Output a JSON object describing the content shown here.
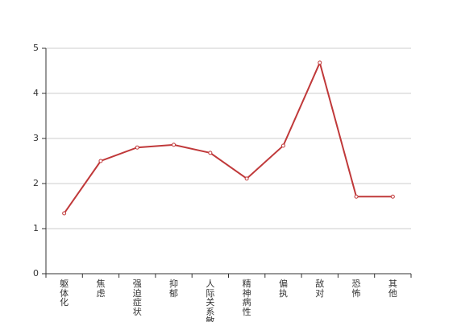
{
  "chart_data": {
    "type": "line",
    "categories": [
      "躯体化",
      "焦虑",
      "强迫症状",
      "抑郁",
      "人际关系敏感",
      "精神病性",
      "偏执",
      "敌对",
      "恐怖",
      "其他"
    ],
    "values": [
      1.34,
      2.5,
      2.8,
      2.86,
      2.68,
      2.11,
      2.84,
      4.68,
      1.71,
      1.71
    ],
    "color": "#c0393a",
    "ylim": [
      0,
      5
    ],
    "yticks": [
      0,
      1,
      2,
      3,
      4,
      5
    ],
    "grid": true
  }
}
